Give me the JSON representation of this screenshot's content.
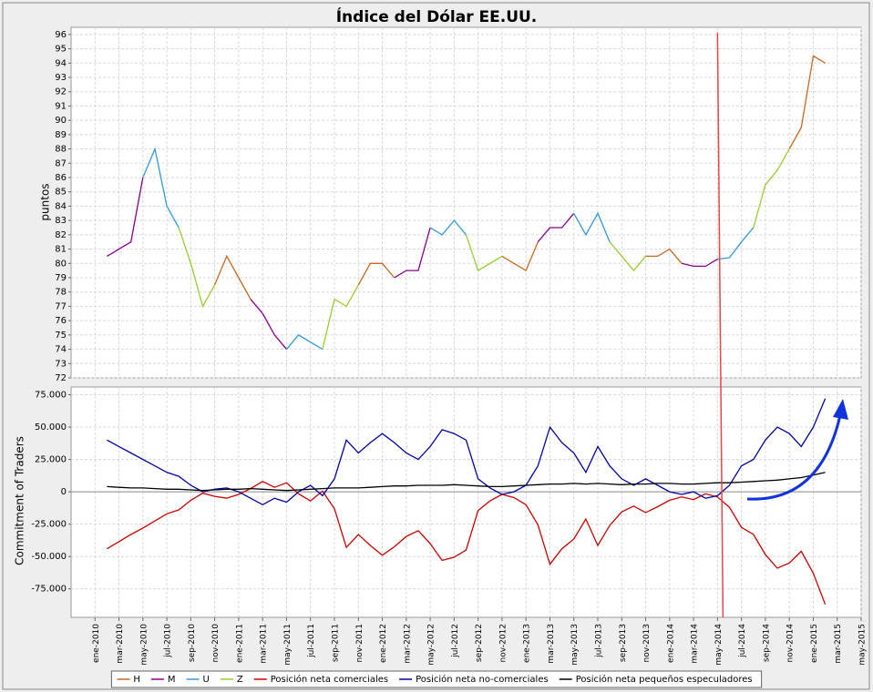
{
  "chart_data": [
    {
      "type": "line",
      "title": "Índice del Dólar EE.UU.",
      "ylabel": "puntos",
      "xlim": [
        "2009-11",
        "2015-05"
      ],
      "ylim": [
        72,
        96.5
      ],
      "yticks": [
        72,
        73,
        74,
        75,
        76,
        77,
        78,
        79,
        80,
        81,
        82,
        83,
        84,
        85,
        86,
        87,
        88,
        89,
        90,
        91,
        92,
        93,
        94,
        95,
        96
      ],
      "grid": true,
      "x": [
        "2010-02",
        "2010-03",
        "2010-04",
        "2010-05",
        "2010-06",
        "2010-07",
        "2010-08",
        "2010-09",
        "2010-10",
        "2010-11",
        "2010-12",
        "2011-01",
        "2011-02",
        "2011-03",
        "2011-04",
        "2011-05",
        "2011-06",
        "2011-07",
        "2011-08",
        "2011-09",
        "2011-10",
        "2011-11",
        "2011-12",
        "2012-01",
        "2012-02",
        "2012-03",
        "2012-04",
        "2012-05",
        "2012-06",
        "2012-07",
        "2012-08",
        "2012-09",
        "2012-10",
        "2012-11",
        "2012-12",
        "2013-01",
        "2013-02",
        "2013-03",
        "2013-04",
        "2013-05",
        "2013-06",
        "2013-07",
        "2013-08",
        "2013-09",
        "2013-10",
        "2013-11",
        "2013-12",
        "2014-01",
        "2014-02",
        "2014-03",
        "2014-04",
        "2014-05",
        "2014-06",
        "2014-07",
        "2014-08",
        "2014-09",
        "2014-10",
        "2014-11",
        "2014-12",
        "2015-01",
        "2015-02"
      ],
      "series": [
        {
          "name": "H",
          "color": "#cc6622",
          "values": [
            80.5,
            null,
            null,
            null,
            null,
            null,
            null,
            null,
            null,
            78.5,
            80.5,
            79,
            77.5,
            null,
            null,
            null,
            null,
            null,
            null,
            null,
            null,
            78.5,
            80,
            80,
            79,
            null,
            null,
            null,
            null,
            null,
            null,
            null,
            null,
            80.5,
            80,
            79.5,
            81.5,
            null,
            null,
            null,
            null,
            null,
            null,
            null,
            null,
            80.5,
            80.5,
            81,
            80,
            null,
            null,
            null,
            null,
            null,
            null,
            null,
            null,
            88,
            89.5,
            94.5,
            94
          ]
        },
        {
          "name": "M",
          "color": "#880088",
          "values": [
            80.5,
            81,
            81.5,
            86,
            null,
            null,
            null,
            null,
            null,
            null,
            null,
            null,
            77.5,
            76.5,
            75,
            74,
            null,
            null,
            null,
            null,
            null,
            null,
            null,
            null,
            79,
            79.5,
            79.5,
            82.5,
            null,
            null,
            null,
            null,
            null,
            null,
            null,
            null,
            81.5,
            82.5,
            82.5,
            83.5,
            null,
            null,
            null,
            null,
            null,
            null,
            null,
            null,
            80,
            79.8,
            79.8,
            80.3,
            null,
            null,
            null,
            null,
            null,
            null,
            null,
            null,
            null
          ]
        },
        {
          "name": "U",
          "color": "#3399dd",
          "values": [
            null,
            null,
            null,
            86,
            88,
            84,
            82.5,
            null,
            null,
            null,
            null,
            null,
            null,
            null,
            null,
            74,
            75,
            74.5,
            74,
            null,
            null,
            null,
            null,
            null,
            null,
            null,
            null,
            82.5,
            82,
            83,
            82,
            null,
            null,
            null,
            null,
            null,
            null,
            null,
            null,
            83.5,
            82,
            83.5,
            81.5,
            null,
            null,
            null,
            null,
            null,
            null,
            null,
            null,
            80.3,
            80.4,
            81.5,
            82.5,
            null,
            null,
            null,
            null,
            null,
            null
          ]
        },
        {
          "name": "Z",
          "color": "#99cc33",
          "values": [
            null,
            null,
            null,
            null,
            null,
            null,
            82.5,
            80,
            77,
            78.5,
            null,
            null,
            null,
            null,
            null,
            null,
            null,
            null,
            74,
            77.5,
            77,
            78.5,
            null,
            null,
            null,
            null,
            null,
            null,
            null,
            null,
            82,
            79.5,
            80,
            80.5,
            null,
            null,
            null,
            null,
            null,
            null,
            null,
            null,
            81.5,
            80.5,
            79.5,
            80.5,
            null,
            null,
            null,
            null,
            null,
            null,
            null,
            null,
            82.5,
            85.5,
            86.5,
            88,
            null,
            null,
            null
          ]
        }
      ]
    },
    {
      "type": "line",
      "ylabel": "Commitment of Traders",
      "xlim": [
        "2009-11",
        "2015-05"
      ],
      "ylim": [
        -97000,
        81000
      ],
      "yticks": [
        {
          "value": -75000,
          "label": "-75.000"
        },
        {
          "value": -50000,
          "label": "-50.000"
        },
        {
          "value": -25000,
          "label": "-25.000"
        },
        0,
        {
          "value": 25000,
          "label": "25.000"
        },
        {
          "value": 50000,
          "label": "50.000"
        },
        {
          "value": 75000,
          "label": "75.000"
        }
      ],
      "xticks": [
        {
          "value": "2010-01",
          "label": "ene-2010"
        },
        {
          "value": "2010-03",
          "label": "mar-2010"
        },
        {
          "value": "2010-05",
          "label": "may-2010"
        },
        {
          "value": "2010-07",
          "label": "jul-2010"
        },
        {
          "value": "2010-09",
          "label": "sep-2010"
        },
        {
          "value": "2010-11",
          "label": "nov-2010"
        },
        {
          "value": "2011-01",
          "label": "ene-2011"
        },
        {
          "value": "2011-03",
          "label": "mar-2011"
        },
        {
          "value": "2011-05",
          "label": "may-2011"
        },
        {
          "value": "2011-07",
          "label": "jul-2011"
        },
        {
          "value": "2011-09",
          "label": "sep-2011"
        },
        {
          "value": "2011-11",
          "label": "nov-2011"
        },
        {
          "value": "2012-01",
          "label": "ene-2012"
        },
        {
          "value": "2012-03",
          "label": "mar-2012"
        },
        {
          "value": "2012-05",
          "label": "may-2012"
        },
        {
          "value": "2012-07",
          "label": "jul-2012"
        },
        {
          "value": "2012-09",
          "label": "sep-2012"
        },
        {
          "value": "2012-11",
          "label": "nov-2012"
        },
        {
          "value": "2013-01",
          "label": "ene-2013"
        },
        {
          "value": "2013-03",
          "label": "mar-2013"
        },
        {
          "value": "2013-05",
          "label": "may-2013"
        },
        {
          "value": "2013-07",
          "label": "jul-2013"
        },
        {
          "value": "2013-09",
          "label": "sep-2013"
        },
        {
          "value": "2013-11",
          "label": "nov-2013"
        },
        {
          "value": "2014-01",
          "label": "ene-2014"
        },
        {
          "value": "2014-03",
          "label": "mar-2014"
        },
        {
          "value": "2014-05",
          "label": "may-2014"
        },
        {
          "value": "2014-07",
          "label": "jul-2014"
        },
        {
          "value": "2014-09",
          "label": "sep-2014"
        },
        {
          "value": "2014-11",
          "label": "nov-2014"
        },
        {
          "value": "2015-01",
          "label": "ene-2015"
        },
        {
          "value": "2015-03",
          "label": "mar-2015"
        },
        {
          "value": "2015-05",
          "label": "may-2015"
        }
      ],
      "grid": true,
      "vline_x": "2014-05",
      "vline_color": "#ee4444",
      "x": [
        "2010-02",
        "2010-03",
        "2010-04",
        "2010-05",
        "2010-06",
        "2010-07",
        "2010-08",
        "2010-09",
        "2010-10",
        "2010-11",
        "2010-12",
        "2011-01",
        "2011-02",
        "2011-03",
        "2011-04",
        "2011-05",
        "2011-06",
        "2011-07",
        "2011-08",
        "2011-09",
        "2011-10",
        "2011-11",
        "2011-12",
        "2012-01",
        "2012-02",
        "2012-03",
        "2012-04",
        "2012-05",
        "2012-06",
        "2012-07",
        "2012-08",
        "2012-09",
        "2012-10",
        "2012-11",
        "2012-12",
        "2013-01",
        "2013-02",
        "2013-03",
        "2013-04",
        "2013-05",
        "2013-06",
        "2013-07",
        "2013-08",
        "2013-09",
        "2013-10",
        "2013-11",
        "2013-12",
        "2014-01",
        "2014-02",
        "2014-03",
        "2014-04",
        "2014-05",
        "2014-06",
        "2014-07",
        "2014-08",
        "2014-09",
        "2014-10",
        "2014-11",
        "2014-12",
        "2015-01",
        "2015-02"
      ],
      "series": [
        {
          "name": "Posición neta comerciales",
          "color": "#cc0000",
          "values": [
            -44000,
            -38500,
            -33000,
            -28000,
            -22500,
            -17000,
            -14000,
            -6500,
            -1000,
            -3500,
            -5000,
            -2000,
            2500,
            8000,
            3500,
            7000,
            -1500,
            -7000,
            500,
            -13000,
            -43000,
            -33000,
            -41500,
            -49000,
            -42500,
            -34500,
            -30000,
            -40000,
            -53000,
            -50500,
            -45000,
            -14500,
            -7000,
            -2000,
            -4500,
            -10000,
            -25500,
            -56000,
            -44000,
            -36500,
            -21000,
            -41500,
            -26000,
            -15500,
            -11000,
            -16000,
            -11500,
            -6500,
            -4000,
            -6000,
            -1500,
            -4000,
            -12000,
            -27500,
            -33000,
            -48500,
            -59000,
            -55000,
            -46000,
            -63000,
            -87000
          ]
        },
        {
          "name": "Posición neta no-comerciales",
          "color": "#0000aa",
          "values": [
            40000,
            35000,
            30000,
            25000,
            20000,
            15000,
            12000,
            5000,
            0,
            2000,
            3000,
            0,
            -5000,
            -10000,
            -5000,
            -8000,
            0,
            5000,
            -3000,
            10000,
            40000,
            30000,
            38000,
            45000,
            38000,
            30000,
            25000,
            35000,
            48000,
            45000,
            40000,
            10000,
            3000,
            -2000,
            0,
            5000,
            20000,
            50000,
            38000,
            30000,
            15000,
            35000,
            20000,
            10000,
            5000,
            10000,
            5000,
            0,
            -2000,
            0,
            -5000,
            -3000,
            5000,
            20000,
            25000,
            40000,
            50000,
            45000,
            35000,
            50000,
            72000
          ]
        },
        {
          "name": "Posición neta pequeños especuladores",
          "color": "#000000",
          "values": [
            4000,
            3500,
            3000,
            3000,
            2500,
            2000,
            2000,
            1500,
            1000,
            1500,
            2000,
            2000,
            2500,
            2000,
            1500,
            1000,
            1500,
            2000,
            2500,
            3000,
            3000,
            3000,
            3500,
            4000,
            4500,
            4500,
            5000,
            5000,
            5000,
            5500,
            5000,
            4500,
            4000,
            4000,
            4500,
            5000,
            5500,
            6000,
            6000,
            6500,
            6000,
            6500,
            6000,
            5500,
            6000,
            6000,
            6500,
            6500,
            6000,
            6000,
            6500,
            7000,
            7000,
            7500,
            8000,
            8500,
            9000,
            10000,
            11000,
            13000,
            15000
          ]
        }
      ]
    }
  ]
}
